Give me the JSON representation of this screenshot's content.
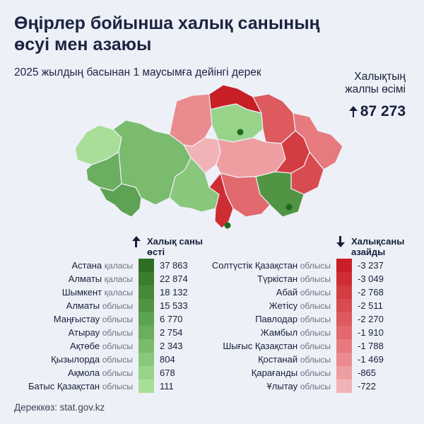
{
  "title_line1": "Өңірлер бойынша халық санының",
  "title_line2": "өсуі мен азаюы",
  "subtitle": "2025 жылдың басынан 1 маусымға дейінгі дерек",
  "total_growth": {
    "label_line1": "Халықтың",
    "label_line2": "жалпы өсімі",
    "value": "87 273"
  },
  "increase": {
    "header_line1": "Халық саны",
    "header_line2": "өсті",
    "rows": [
      {
        "name": "Астана",
        "type": "қаласы",
        "value": "37 863",
        "color": "#2f6e25"
      },
      {
        "name": "Алматы",
        "type": "қаласы",
        "value": "22 874",
        "color": "#3b7d2e"
      },
      {
        "name": "Шымкент",
        "type": "қаласы",
        "value": "18 132",
        "color": "#468a38"
      },
      {
        "name": "Алматы",
        "type": "облысы",
        "value": "15 533",
        "color": "#519544"
      },
      {
        "name": "Маңғыстау",
        "type": "облысы",
        "value": "6 770",
        "color": "#5ea253"
      },
      {
        "name": "Атырау",
        "type": "облысы",
        "value": "2 754",
        "color": "#6bae60"
      },
      {
        "name": "Ақтөбе",
        "type": "облысы",
        "value": "2 343",
        "color": "#7abb6e"
      },
      {
        "name": "Қызылорда",
        "type": "облысы",
        "value": "804",
        "color": "#89c77c"
      },
      {
        "name": "Ақмола",
        "type": "облысы",
        "value": "678",
        "color": "#98d38a"
      },
      {
        "name": "Батыс Қазақстан",
        "type": "облысы",
        "value": "111",
        "color": "#a8de98"
      }
    ]
  },
  "decrease": {
    "header_line1": "Халықсаны",
    "header_line2": "азайды",
    "rows": [
      {
        "name": "Солтүстік Қазақстан",
        "type": "облысы",
        "value": "-3 237",
        "color": "#c81e25"
      },
      {
        "name": "Түркістан",
        "type": "облысы",
        "value": "-3 049",
        "color": "#cd2d33"
      },
      {
        "name": "Абай",
        "type": "облысы",
        "value": "-2 768",
        "color": "#d33c41"
      },
      {
        "name": "Жетісу",
        "type": "облысы",
        "value": "-2 511",
        "color": "#d84b50"
      },
      {
        "name": "Павлодар",
        "type": "облысы",
        "value": "-2 270",
        "color": "#dd5a5f"
      },
      {
        "name": "Жамбыл",
        "type": "облысы",
        "value": "-1 910",
        "color": "#e2696e"
      },
      {
        "name": "Шығыс Қазақстан",
        "type": "облысы",
        "value": "-1 788",
        "color": "#e67a7e"
      },
      {
        "name": "Қостанай",
        "type": "облысы",
        "value": "-1 469",
        "color": "#ea8b8f"
      },
      {
        "name": "Қарағанды",
        "type": "облысы",
        "value": "-865",
        "color": "#ee9ea1"
      },
      {
        "name": "Ұлытау",
        "type": "облысы",
        "value": "-722",
        "color": "#f2b3b6"
      }
    ]
  },
  "source": "Дереккөз: stat.gov.kz"
}
